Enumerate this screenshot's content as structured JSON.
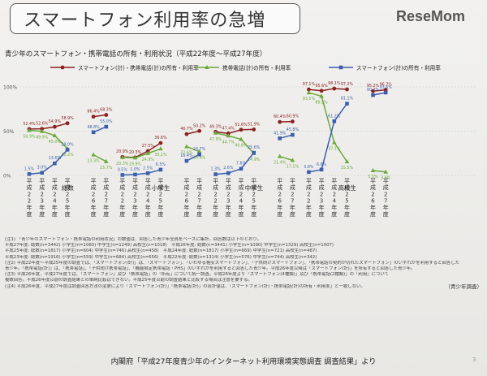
{
  "title": "スマートフォン利用率の急増",
  "logo": "ReseMom",
  "logo_sub": "",
  "subtitle": "青少年のスマートフォン・携帯電話の所有・利用状況（平成22年度〜平成27年度）",
  "source_right": "（青少年調査）",
  "source_bottom": "内閣府「平成27年度青少年のインターネット利用環境実態調査 調査結果」より",
  "slide_number": "3",
  "notes": [
    "(注1) 「青少年のスマートフォン・携帯電話の利用状況」の数値は、回答した青少年全員をベースに集計。回答数は以下のとおり。",
    "平成27年度: 総数(n=3442) 小学生(n=1060) 中学生(n=1249) 高校生(n=1018)　平成26年度: 総数(n=3441) 小学生(n=1090) 中学生(n=1329) 高校生(n=1007)",
    "平成25年度: 総数(n=1817) 小学生(n=604) 中学生(n=746) 高校生(n=458)　平成24年度: 総数(n=1817) 小学生(n=669) 中学生(n=721) 高校生(n=487)",
    "平成23年度: 総数(n=1916) 小学生(n=559) 中学生(n=684) 高校生(n=656)　平成22年度: 総数(n=1314) 小学生(n=576) 中学生(n=744) 高校生(n=342)",
    "(注2) 平成22年度〜平成25年度の調査では、「スマートフォン(計)」は、「スマートフォン」、「いわゆる格安スマートフォン」、「子供向けスマートフォン」、「携帯電話の契約が切れたスマートフォン」のいずれかを利用すると回答した",
    "青少年。「携帯電話(計)」は、「携帯電話」、「子供向け携帯電話」、「機能限定携帯電話・PHS」のいずれかを利用すると回答した青少年。平成26年度以降は「スマートフォン(計)」を所有すると回答した青少年。",
    "(注3) 平成26年度、平成27年度では、「スマートフォン」及び「携帯電話」の「所有」について統一調査。平成26年度より「スマートフォン(4種類)」及び「携帯電話(2種類)」の「利用」について",
    "複数回答。平成26年度以前の調査結果との単純比較はできない。平成25年度以前の調査結果と比較する場合は注意を要する。",
    "(注4) 平成26年度、平成27年度は調査回答方法の変更により「スマートフォン(計)」「携帯電話(計)」の合計値は、「スマートフォン(計)・携帯電話(計)の所有・利用率」と一致しない。"
  ],
  "chart_data": {
    "type": "line",
    "legend": "top",
    "ylim": [
      0,
      100
    ],
    "yticks": [
      "0%",
      "50%",
      "100%"
    ],
    "series_defs": [
      {
        "key": "total",
        "name": "スマートフォン(計)・携帯電話(計)の所有・利用率",
        "color": "#8b2020",
        "marker": "circle"
      },
      {
        "key": "keitai",
        "name": "携帯電話(計)の所有・利用率",
        "color": "#6aaa3a",
        "marker": "triangle"
      },
      {
        "key": "smart",
        "name": "スマートフォン(計)の所有・利用率",
        "color": "#3b5fae",
        "marker": "square"
      }
    ],
    "groups": [
      {
        "name": "総数",
        "segments": [
          {
            "years": [
              "平成22年度",
              "平成23年度",
              "平成24年度",
              "平成25年度"
            ],
            "total": [
              52.4,
              52.6,
              54.9,
              58.9
            ],
            "keitai": [
              50.9,
              49.9,
              45.0,
              30.2
            ],
            "smart": [
              1.5,
              3.0,
              13.6,
              29.0
            ],
            "labels": {
              "total": [
                "52.4%",
                "52.6%",
                "54.9%",
                "58.9%"
              ],
              "keitai": [
                "50.9%",
                "49.9%",
                "45.0%",
                "30.2%"
              ],
              "smart": [
                "1.5%",
                "3.0%",
                "13.6%",
                "29.0%"
              ]
            }
          },
          {
            "years": [
              "平成26年度",
              "平成27年度"
            ],
            "total": [
              66.4,
              68.3
            ],
            "keitai": [
              23.3,
              15.7
            ],
            "smart": [
              48.8,
              55.0
            ],
            "labels": {
              "total": [
                "66.4%",
                "68.3%"
              ],
              "keitai": [
                "23.3%",
                "15.7%"
              ],
              "smart": [
                "48.8%",
                "55.0%"
              ]
            }
          }
        ]
      },
      {
        "name": "小学生",
        "segments": [
          {
            "years": [
              "平成22年度",
              "平成23年度",
              "平成24年度",
              "平成25年度"
            ],
            "total": [
              20.9,
              20.3,
              27.5,
              36.6
            ],
            "keitai": [
              20.3,
              19.9,
              24.9,
              30.1
            ],
            "smart": [
              0.5,
              1.0,
              2.5,
              6.5
            ],
            "labels": {
              "total": [
                "20.9%",
                "20.3%",
                "27.5%",
                "36.6%"
              ],
              "keitai": [
                "20.3%",
                "19.9%",
                "24.9%",
                "30.1%"
              ],
              "smart": [
                "0.5%",
                "1.0%",
                "2.5%",
                "6.5%"
              ]
            }
          },
          {
            "years": [
              "平成26年度",
              "平成27年度"
            ],
            "total": [
              46.7,
              50.2
            ],
            "keitai": [
              32.6,
              26.9
            ],
            "smart": [
              16.4,
              23.7
            ],
            "labels": {
              "total": [
                "46.7%",
                "50.2%"
              ],
              "keitai": [
                "32.6%",
                "26.9%"
              ],
              "smart": [
                "16.4%",
                "23.7%"
              ]
            }
          }
        ]
      },
      {
        "name": "中学生",
        "segments": [
          {
            "years": [
              "平成22年度",
              "平成23年度",
              "平成24年度",
              "平成25年度"
            ],
            "total": [
              49.3,
              47.4,
              51.6,
              51.9
            ],
            "keitai": [
              47.9,
              44.7,
              40.8,
              24.9
            ],
            "smart": [
              1.3,
              2.6,
              7.6,
              25.6
            ],
            "labels": {
              "total": [
                "49.3%",
                "47.4%",
                "51.6%",
                "51.9%"
              ],
              "keitai": [
                "47.9%",
                "44.7%",
                "40.8%",
                "24.9%"
              ],
              "smart": [
                "1.3%",
                "2.6%",
                "7.6%",
                "25.6%"
              ]
            }
          },
          {
            "years": [
              "平成26年度",
              "平成27年度"
            ],
            "total": [
              60.4,
              60.9
            ],
            "keitai": [
              21.4,
              17.1
            ],
            "smart": [
              41.9,
              45.8
            ],
            "labels": {
              "total": [
                "60.4%",
                "60.9%"
              ],
              "keitai": [
                "21.4%",
                "17.1%"
              ],
              "smart": [
                "41.9%",
                "45.8%"
              ]
            }
          }
        ]
      },
      {
        "name": "高校生",
        "segments": [
          {
            "years": [
              "平成22年度",
              "平成23年度",
              "平成24年度",
              "平成25年度"
            ],
            "total": [
              97.1,
              95.6,
              98.1,
              97.2
            ],
            "keitai": [
              93.5,
              89.5,
              37.1,
              15.5
            ],
            "smart": [
              3.8,
              6.6,
              61.2,
              81.1
            ],
            "labels": {
              "total": [
                "97.1%",
                "95.6%",
                "98.1%",
                "97.2%"
              ],
              "keitai": [
                "93.5%",
                "89.5%",
                "37.1%",
                "15.5%"
              ],
              "smart": [
                "3.8%",
                "6.6%",
                "61.2%",
                "81.1%"
              ]
            }
          },
          {
            "years": [
              "平成26年度",
              "平成27年度"
            ],
            "total": [
              95.2,
              96.7
            ],
            "keitai": [
              5.5,
              3.9
            ],
            "smart": [
              90.7,
              93.6
            ],
            "labels": {
              "total": [
                "95.2%",
                "96.7%"
              ],
              "keitai": [
                "5.5%",
                "3.9%"
              ],
              "smart": [
                "90.7%",
                "93.6%"
              ]
            }
          }
        ]
      }
    ]
  }
}
